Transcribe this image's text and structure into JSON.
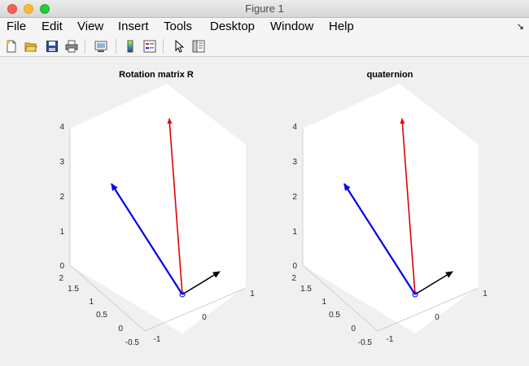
{
  "window": {
    "title": "Figure 1"
  },
  "menu": {
    "items": [
      "File",
      "Edit",
      "View",
      "Insert",
      "Tools",
      "Desktop",
      "Window",
      "Help"
    ],
    "overflow_icon": "arrow-icon"
  },
  "toolbar": {
    "icons": [
      "new-figure-icon",
      "open-file-icon",
      "save-icon",
      "print-icon",
      "link-plot-icon",
      "insert-colorbar-icon",
      "insert-legend-icon",
      "edit-plot-arrow-icon",
      "property-inspector-icon"
    ]
  },
  "colors": {
    "red_vector": "#e00000",
    "blue_vector": "#0000ee",
    "black_vector": "#000000",
    "axes_bg": "#ffffff"
  },
  "plots": [
    {
      "title": "Rotation matrix R",
      "z_ticks": [
        "0",
        "1",
        "2",
        "3",
        "4"
      ],
      "y_ticks": [
        "2",
        "1.5",
        "1",
        "0.5",
        "0",
        "-0.5"
      ],
      "x_ticks": [
        "-1",
        "0",
        "1"
      ]
    },
    {
      "title": "quaternion",
      "z_ticks": [
        "0",
        "1",
        "2",
        "3",
        "4"
      ],
      "y_ticks": [
        "2",
        "1.5",
        "1",
        "0.5",
        "0",
        "-0.5"
      ],
      "x_ticks": [
        "-1",
        "0",
        "1"
      ]
    }
  ]
}
